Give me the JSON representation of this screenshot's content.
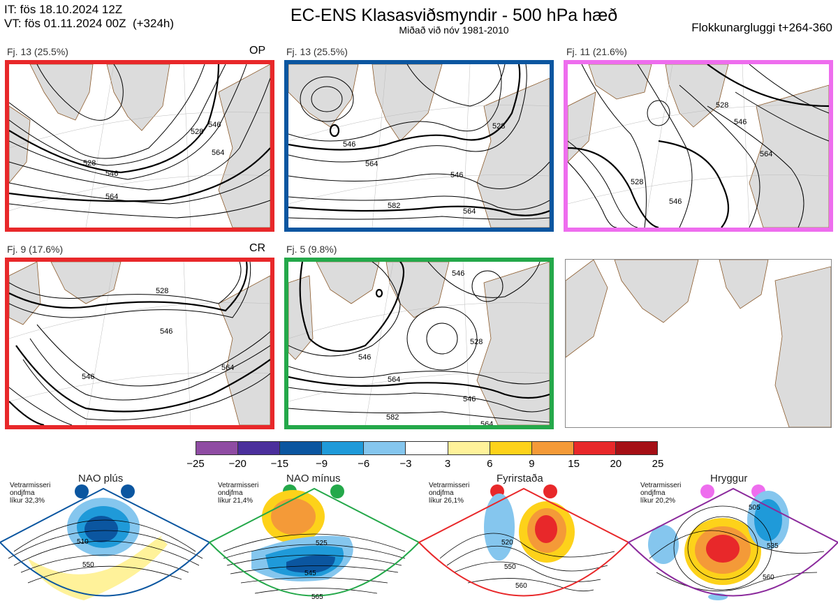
{
  "header": {
    "it_line": "IT: fös 18.10.2024 12Z",
    "vt_line": "VT: fös 01.11.2024 00Z  (+324h)",
    "title": "EC-ENS Klasasviðsmyndir - 500 hPa hæð",
    "subtitle": "Miðað við nóv 1981-2010",
    "window": "Flokkunargluggi t+264-360"
  },
  "clusters": [
    {
      "label": "Fj. 13 (25.5%)",
      "tag": "OP",
      "border": "#e8282a",
      "contours": [
        "528",
        "546",
        "546",
        "528",
        "564",
        "564"
      ]
    },
    {
      "label": "Fj. 13 (25.5%)",
      "tag": "",
      "border": "#0b56a0",
      "contours": [
        "546",
        "528",
        "564",
        "546",
        "582",
        "564"
      ]
    },
    {
      "label": "Fj. 11 (21.6%)",
      "tag": "",
      "border": "#ee6dee",
      "contours": [
        "528",
        "546",
        "564",
        "528",
        "546"
      ]
    },
    {
      "label": "Fj. 9 (17.6%)",
      "tag": "CR",
      "border": "#e8282a",
      "contours": [
        "528",
        "546",
        "546",
        "564"
      ]
    },
    {
      "label": "Fj. 5 (9.8%)",
      "tag": "",
      "border": "#24a84a",
      "contours": [
        "546",
        "528",
        "546",
        "564",
        "546",
        "582",
        "564"
      ]
    }
  ],
  "colorbar": {
    "colors": [
      "#8f4ca3",
      "#4b2f9c",
      "#0b56a0",
      "#1f9ad9",
      "#85c6ee",
      "#ffffff",
      "#fff29a",
      "#fdd21a",
      "#f49a38",
      "#e8282a",
      "#a50f15"
    ],
    "ticks": [
      "−25",
      "−20",
      "−15",
      "−9",
      "−6",
      "−3",
      "3",
      "6",
      "9",
      "15",
      "20",
      "25"
    ]
  },
  "regimes": [
    {
      "title": "NAO plús",
      "note1": "Vetrarmisseri",
      "note2": "ondjfma",
      "note3": "líkur 32,3%",
      "color": "#0b56a0",
      "labels": [
        "510",
        "550"
      ]
    },
    {
      "title": "NAO mínus",
      "note1": "Vetrarmisseri",
      "note2": "ondjfma",
      "note3": "líkur 21,4%",
      "color": "#24a84a",
      "labels": [
        "525",
        "545",
        "565"
      ]
    },
    {
      "title": "Fyrirstaða",
      "note1": "Vetrarmisseri",
      "note2": "ondjfma",
      "note3": "líkur 26,1%",
      "color": "#e8282a",
      "labels": [
        "520",
        "550",
        "560"
      ]
    },
    {
      "title": "Hryggur",
      "note1": "Vetrarmisseri",
      "note2": "ondjfma",
      "note3": "líkur 20,2%",
      "color": "#ee6dee",
      "labels": [
        "505",
        "535",
        "560"
      ]
    }
  ]
}
